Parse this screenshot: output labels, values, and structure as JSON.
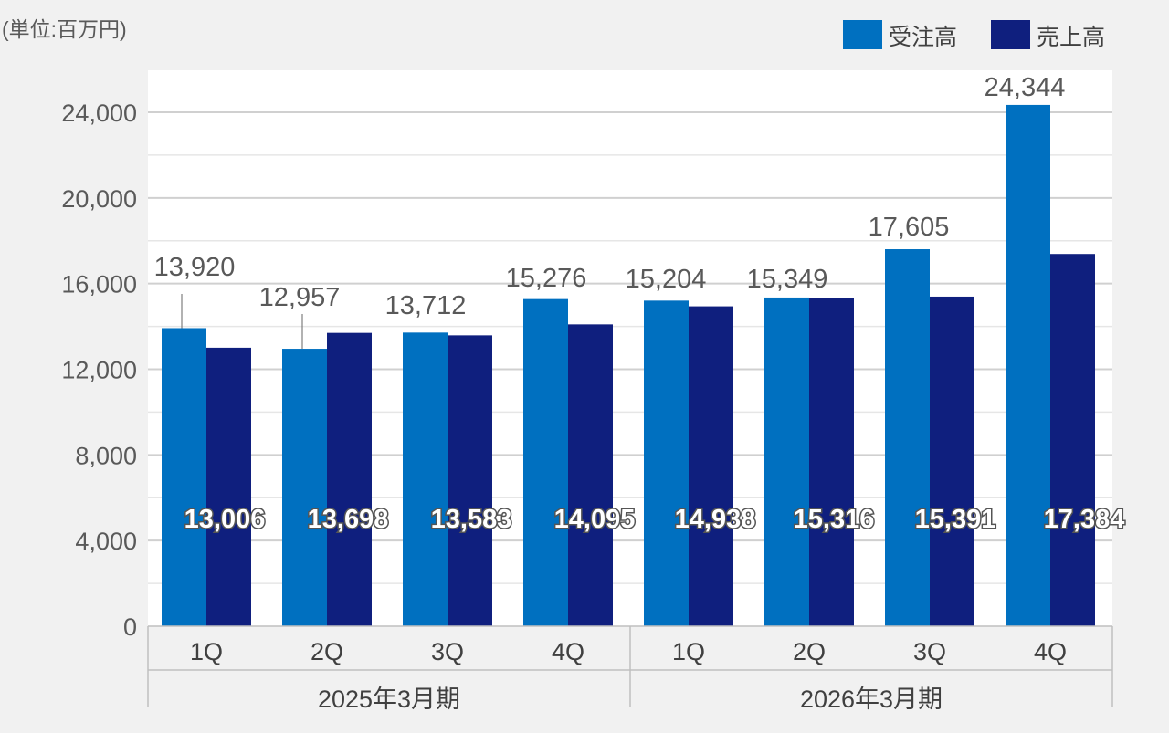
{
  "chart_data": {
    "type": "bar",
    "unit_label": "(単位:百万円)",
    "categories": [
      "1Q",
      "2Q",
      "3Q",
      "4Q",
      "1Q",
      "2Q",
      "3Q",
      "4Q"
    ],
    "groups": [
      {
        "label": "2025年3月期",
        "count": 4
      },
      {
        "label": "2026年3月期",
        "count": 4
      }
    ],
    "series": [
      {
        "name": "受注高",
        "color": "#0070c0",
        "values": [
          13920,
          12957,
          13712,
          15276,
          15204,
          15349,
          17605,
          24344
        ]
      },
      {
        "name": "売上高",
        "color": "#0f1f7e",
        "values": [
          13006,
          13698,
          13583,
          14095,
          14938,
          15316,
          15391,
          17384
        ]
      }
    ],
    "value_labels": {
      "order": [
        "13,920",
        "12,957",
        "13,712",
        "15,276",
        "15,204",
        "15,349",
        "17,605",
        "24,344"
      ],
      "sales": [
        "13,006",
        "13,698",
        "13,583",
        "14,095",
        "14,938",
        "15,316",
        "15,391",
        "17,384"
      ]
    },
    "ylim": [
      0,
      26000
    ],
    "y_ticks": [
      0,
      4000,
      8000,
      12000,
      16000,
      20000,
      24000
    ],
    "y_tick_labels": [
      "0",
      "4,000",
      "8,000",
      "12,000",
      "16,000",
      "20,000",
      "24,000"
    ],
    "grid": true,
    "legend_position": "top-right"
  }
}
